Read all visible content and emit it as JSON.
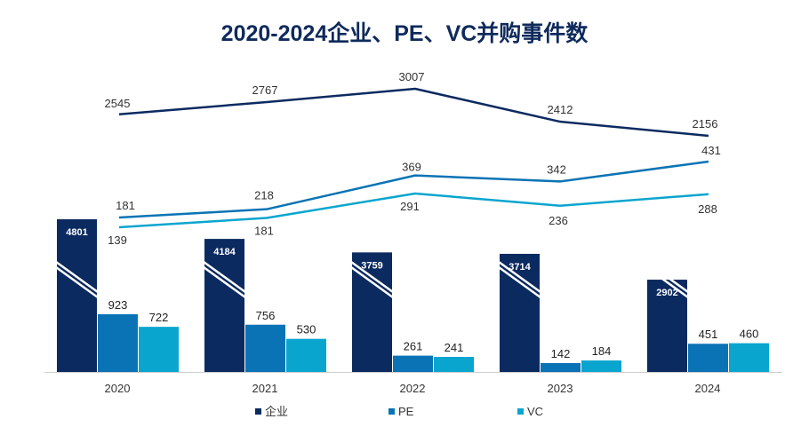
{
  "chart_data": {
    "type": "bar+line",
    "title": "2020-2024企业、PE、VC并购事件数",
    "categories": [
      "2020",
      "2021",
      "2022",
      "2023",
      "2024"
    ],
    "series": [
      {
        "name": "企业",
        "color": "#0b2a60",
        "values": [
          4801,
          4184,
          3759,
          3714,
          2902
        ]
      },
      {
        "name": "PE",
        "color": "#0a73b5",
        "values": [
          923,
          756,
          261,
          142,
          451
        ]
      },
      {
        "name": "VC",
        "color": "#0aa5cf",
        "values": [
          722,
          530,
          241,
          184,
          460
        ]
      }
    ],
    "line_series": [
      {
        "name": "企业",
        "color": "#0b2a60",
        "values": [
          2545,
          2767,
          3007,
          2412,
          2156
        ]
      },
      {
        "name": "PE",
        "color": "#0a73b5",
        "values": [
          181,
          218,
          369,
          342,
          431
        ]
      },
      {
        "name": "VC",
        "color": "#0aa5cf",
        "values": [
          139,
          181,
          291,
          236,
          288
        ]
      }
    ],
    "axis_break": true,
    "legend": [
      "企业",
      "PE",
      "VC"
    ],
    "legend_position": "bottom"
  }
}
